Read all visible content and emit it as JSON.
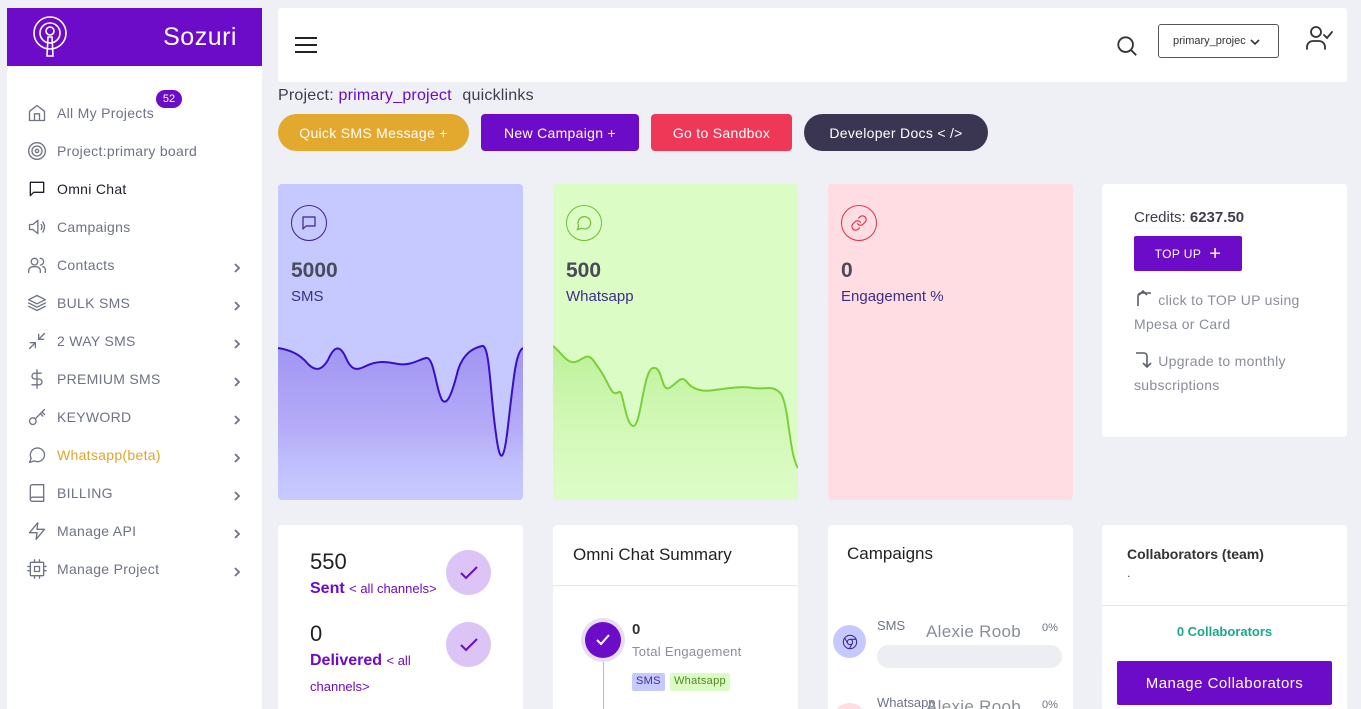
{
  "brand": {
    "name": "Sozuri"
  },
  "sidebar": {
    "items": [
      {
        "label": "All My Projects",
        "icon": "home-icon",
        "badge": "52"
      },
      {
        "label": "Project:primary board",
        "icon": "target-icon"
      },
      {
        "label": "Omni Chat",
        "icon": "chat-square-icon"
      },
      {
        "label": "Campaigns",
        "icon": "megaphone-icon"
      },
      {
        "label": "Contacts",
        "icon": "users-icon"
      },
      {
        "label": "BULK SMS",
        "icon": "layers-icon"
      },
      {
        "label": "2 WAY SMS",
        "icon": "arrows-in-icon"
      },
      {
        "label": "PREMIUM SMS",
        "icon": "dollar-icon"
      },
      {
        "label": "KEYWORD",
        "icon": "key-icon"
      },
      {
        "label": "Whatsapp(beta)",
        "icon": "whatsapp-icon"
      },
      {
        "label": "BILLING",
        "icon": "book-icon"
      },
      {
        "label": "Manage API",
        "icon": "bolt-icon"
      },
      {
        "label": "Manage Project",
        "icon": "cpu-icon"
      }
    ]
  },
  "topbar": {
    "project_select": "primary_projec"
  },
  "project": {
    "prefix": "Project:",
    "name": "primary_project",
    "quicklinks": "quicklinks"
  },
  "quick_buttons": {
    "sms": "Quick SMS Message +",
    "campaign": "New Campaign +",
    "sandbox": "Go to Sandbox",
    "docs": "Developer Docs <  />"
  },
  "stats": {
    "sms": {
      "value": "5000",
      "label": "SMS"
    },
    "whatsapp": {
      "value": "500",
      "label": "Whatsapp"
    },
    "engagement": {
      "value": "0",
      "label": "Engagement %"
    }
  },
  "credits": {
    "label": "Credits:",
    "value": "6237.50",
    "topup_label": "TOP UP",
    "note_topup": "click to TOP UP using Mpesa or Card",
    "note_upgrade": "Upgrade to monthly subscriptions"
  },
  "sent_card": {
    "sent_value": "550",
    "sent_label": "Sent",
    "sent_sub": "< all channels>",
    "delivered_value": "0",
    "delivered_label": "Delivered",
    "delivered_sub": "< all channels>"
  },
  "omni": {
    "title": "Omni Chat Summary",
    "engagement_value": "0",
    "engagement_label": "Total Engagement",
    "tag_sms": "SMS",
    "tag_wa": "Whatsapp"
  },
  "campaigns": {
    "title": "Campaigns",
    "items": [
      {
        "channel": "SMS",
        "person": "Alexie Roob",
        "pct": "0%"
      },
      {
        "channel": "Whatsapp",
        "person": "Alexie Roob",
        "pct": "0%"
      }
    ]
  },
  "collab": {
    "title": "Collaborators (team)",
    "dot": ".",
    "count": "0 Collaborators",
    "button": "Manage Collaborators"
  },
  "colors": {
    "brand": "#6c0bc8",
    "sms_card": "#c6c9ff",
    "wa_card": "#dcfcc6",
    "eng_card": "#ffdde2",
    "sandbox": "#ef3857",
    "quick_sms": "#e3a82e",
    "docs": "#3a3652"
  }
}
